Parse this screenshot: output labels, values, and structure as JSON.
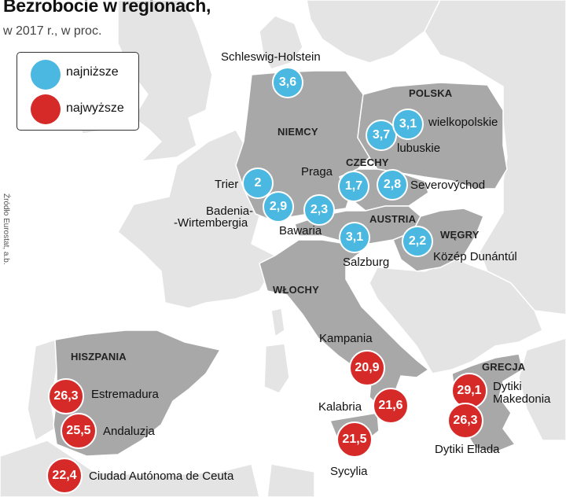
{
  "title": "Bezrobocie w regionach,",
  "subtitle": "w 2017 r., w proc.",
  "legend": {
    "low_label": "najniższe",
    "high_label": "najwyższe",
    "low_color": "#4ab8e0",
    "high_color": "#d62a28"
  },
  "source": "Źródło Eurostat, a.b.",
  "countries": {
    "polska": "POLSKA",
    "niemcy": "NIEMCY",
    "czechy": "CZECHY",
    "austria": "AUSTRIA",
    "wegry": "WĘGRY",
    "wlochy": "WŁOCHY",
    "hiszpania": "HISZPANIA",
    "grecja": "GRECJA"
  },
  "regions": {
    "schleswig": {
      "name": "Schleswig-Holstein",
      "value": "3,6"
    },
    "wielkopolskie": {
      "name": "wielkopolskie",
      "value": "3,1"
    },
    "lubuskie": {
      "name": "lubuskie",
      "value": "3,7"
    },
    "praga": {
      "name": "Praga",
      "value": "1,7"
    },
    "severovychod": {
      "name": "Severovýchod",
      "value": "2,8"
    },
    "trier": {
      "name": "Trier",
      "value": "2"
    },
    "badenia": {
      "name_line1": "Badenia-",
      "name_line2": "-Wirtembergia",
      "value": "2,9"
    },
    "bawaria": {
      "name": "Bawaria",
      "value": "2,3"
    },
    "salzburg": {
      "name": "Salzburg",
      "value": "3,1"
    },
    "kozep": {
      "name": "Közép Dunántúl",
      "value": "2,2"
    },
    "kampania": {
      "name": "Kampania",
      "value": "20,9"
    },
    "kalabria": {
      "name": "Kalabria",
      "value": "21,6"
    },
    "sycylia": {
      "name": "Sycylia",
      "value": "21,5"
    },
    "estremadura": {
      "name": "Estremadura",
      "value": "26,3"
    },
    "andaluzja": {
      "name": "Andaluzja",
      "value": "25,5"
    },
    "ceuta": {
      "name": "Ciudad Autónoma de Ceuta",
      "value": "22,4"
    },
    "dytiki_makedonia": {
      "name_line1": "Dytiki",
      "name_line2": "Makedonia",
      "value": "29,1"
    },
    "dytiki_ellada": {
      "name": "Dytiki Ellada",
      "value": "26,3"
    }
  },
  "colors": {
    "sea": "#ffffff",
    "land_other": "#e4e4e4",
    "land_highlight": "#a8a8a8",
    "border": "#ffffff"
  }
}
